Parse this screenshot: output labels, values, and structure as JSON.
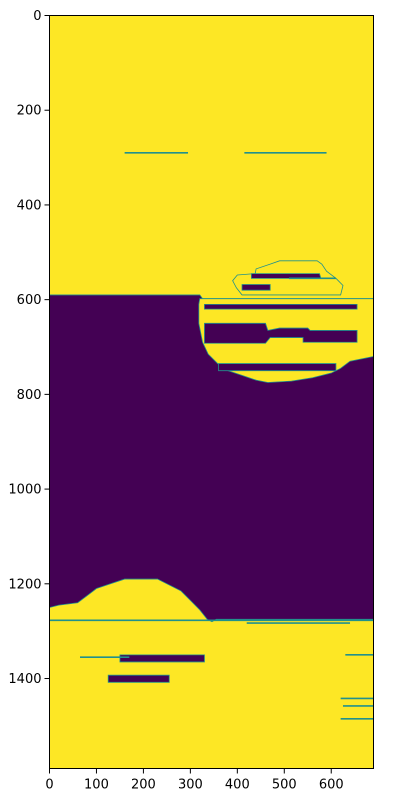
{
  "chart_data": {
    "type": "heatmap",
    "title": "",
    "xlabel": "",
    "ylabel": "",
    "x_range": [
      0,
      690
    ],
    "y_range": [
      1590,
      0
    ],
    "y_inverted": true,
    "grid": false,
    "legend": "none",
    "colormap": "viridis",
    "value_colors": {
      "low": "#440154",
      "high": "#fde725",
      "edge": "#21918c"
    },
    "x_ticks": [
      0,
      100,
      200,
      300,
      400,
      500,
      600
    ],
    "x_tick_labels": [
      "0",
      "100",
      "200",
      "300",
      "400",
      "500",
      "600"
    ],
    "y_ticks": [
      0,
      200,
      400,
      600,
      800,
      1000,
      1200,
      1400
    ],
    "y_tick_labels": [
      "0",
      "200",
      "400",
      "600",
      "800",
      "1000",
      "1200",
      "1400"
    ],
    "regions": [
      {
        "value": "high",
        "shape": "polygon",
        "points": [
          [
            0,
            0
          ],
          [
            690,
            0
          ],
          [
            690,
            1590
          ],
          [
            0,
            1590
          ]
        ]
      },
      {
        "value": "low",
        "shape": "polygon",
        "points": [
          [
            0,
            590
          ],
          [
            320,
            590
          ],
          [
            326,
            598
          ],
          [
            690,
            598
          ],
          [
            690,
            720
          ],
          [
            690,
            1275
          ],
          [
            355,
            1275
          ],
          [
            346,
            1280
          ],
          [
            336,
            1275
          ],
          [
            320,
            1255
          ],
          [
            300,
            1235
          ],
          [
            280,
            1215
          ],
          [
            250,
            1200
          ],
          [
            230,
            1190
          ],
          [
            160,
            1190
          ],
          [
            130,
            1200
          ],
          [
            100,
            1210
          ],
          [
            80,
            1225
          ],
          [
            60,
            1240
          ],
          [
            20,
            1245
          ],
          [
            0,
            1250
          ]
        ]
      },
      {
        "value": "high",
        "shape": "polygon",
        "points": [
          [
            320,
            598
          ],
          [
            690,
            598
          ],
          [
            690,
            720
          ],
          [
            640,
            730
          ],
          [
            620,
            745
          ],
          [
            600,
            755
          ],
          [
            560,
            765
          ],
          [
            515,
            772
          ],
          [
            465,
            775
          ],
          [
            440,
            770
          ],
          [
            410,
            760
          ],
          [
            380,
            750
          ],
          [
            358,
            735
          ],
          [
            338,
            715
          ],
          [
            326,
            690
          ],
          [
            318,
            650
          ],
          [
            318,
            610
          ]
        ]
      },
      {
        "value": "high",
        "shape": "polygon",
        "points": [
          [
            400,
            548
          ],
          [
            438,
            545
          ],
          [
            440,
            535
          ],
          [
            470,
            525
          ],
          [
            490,
            518
          ],
          [
            570,
            518
          ],
          [
            580,
            525
          ],
          [
            590,
            540
          ],
          [
            610,
            555
          ],
          [
            625,
            570
          ],
          [
            620,
            590
          ],
          [
            410,
            590
          ],
          [
            398,
            575
          ],
          [
            390,
            560
          ]
        ]
      },
      {
        "value": "low",
        "shape": "polygon",
        "points": [
          [
            430,
            545
          ],
          [
            575,
            545
          ],
          [
            578,
            555
          ],
          [
            430,
            555
          ]
        ]
      },
      {
        "value": "low",
        "shape": "polygon",
        "points": [
          [
            410,
            568
          ],
          [
            470,
            568
          ],
          [
            470,
            580
          ],
          [
            410,
            580
          ]
        ]
      },
      {
        "value": "low",
        "shape": "polygon",
        "points": [
          [
            330,
            610
          ],
          [
            655,
            610
          ],
          [
            655,
            620
          ],
          [
            330,
            620
          ]
        ]
      },
      {
        "value": "low",
        "shape": "polygon",
        "points": [
          [
            330,
            650
          ],
          [
            460,
            650
          ],
          [
            465,
            665
          ],
          [
            490,
            660
          ],
          [
            550,
            660
          ],
          [
            555,
            665
          ],
          [
            655,
            665
          ],
          [
            655,
            690
          ],
          [
            540,
            690
          ],
          [
            540,
            680
          ],
          [
            470,
            680
          ],
          [
            460,
            692
          ],
          [
            330,
            692
          ]
        ]
      },
      {
        "value": "low",
        "shape": "polygon",
        "points": [
          [
            360,
            735
          ],
          [
            610,
            735
          ],
          [
            610,
            750
          ],
          [
            360,
            750
          ]
        ]
      },
      {
        "value": "low",
        "shape": "polygon",
        "points": [
          [
            150,
            1350
          ],
          [
            330,
            1350
          ],
          [
            330,
            1365
          ],
          [
            150,
            1365
          ]
        ]
      },
      {
        "value": "low",
        "shape": "polygon",
        "points": [
          [
            125,
            1393
          ],
          [
            255,
            1393
          ],
          [
            255,
            1408
          ],
          [
            125,
            1408
          ]
        ]
      }
    ],
    "edge_lines": [
      {
        "x": [
          160,
          295
        ],
        "y": 290
      },
      {
        "x": [
          415,
          590
        ],
        "y": 290
      },
      {
        "x": [
          510,
          610
        ],
        "y": 555
      },
      {
        "x": [
          0,
          690
        ],
        "y": 1277
      },
      {
        "x": [
          420,
          640
        ],
        "y": 1283
      },
      {
        "x": [
          65,
          170
        ],
        "y": 1355
      },
      {
        "x": [
          630,
          690
        ],
        "y": 1350
      },
      {
        "x": [
          620,
          690
        ],
        "y": 1442
      },
      {
        "x": [
          625,
          690
        ],
        "y": 1458
      },
      {
        "x": [
          620,
          690
        ],
        "y": 1485
      }
    ]
  }
}
